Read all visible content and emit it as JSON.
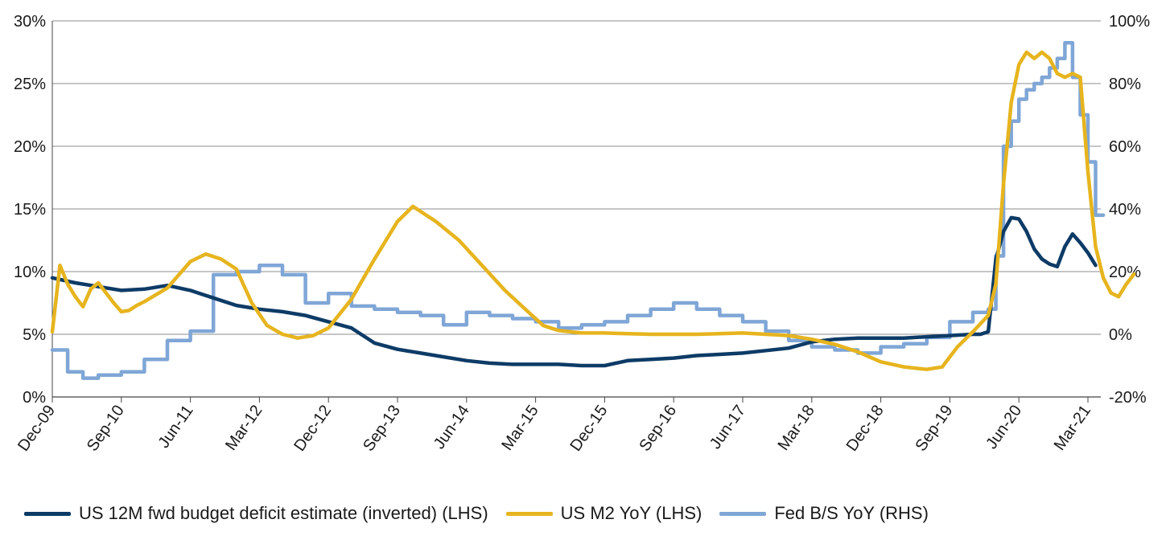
{
  "chart_data": {
    "type": "line",
    "title": "",
    "x_tick_labels": [
      "Dec-09",
      "Sep-10",
      "Jun-11",
      "Mar-12",
      "Dec-12",
      "Sep-13",
      "Jun-14",
      "Mar-15",
      "Dec-15",
      "Sep-16",
      "Jun-17",
      "Mar-18",
      "Dec-18",
      "Sep-19",
      "Jun-20",
      "Mar-21"
    ],
    "x_range": [
      "2009-12",
      "2021-03"
    ],
    "y_left": {
      "ticks": [
        "0%",
        "5%",
        "10%",
        "15%",
        "20%",
        "25%",
        "30%"
      ],
      "range": [
        0,
        30
      ]
    },
    "y_right": {
      "ticks": [
        "-20%",
        "0%",
        "20%",
        "40%",
        "60%",
        "80%",
        "100%"
      ],
      "range": [
        -20,
        100
      ]
    },
    "grid": "horizontal",
    "legend_position": "bottom",
    "series": [
      {
        "name": "US 12M fwd budget deficit estimate (inverted) (LHS)",
        "axis": "left",
        "color": "#0d3b66",
        "points": [
          [
            "2009-12",
            9.5
          ],
          [
            "2010-03",
            9.1
          ],
          [
            "2010-06",
            8.8
          ],
          [
            "2010-09",
            8.5
          ],
          [
            "2010-12",
            8.6
          ],
          [
            "2011-03",
            8.9
          ],
          [
            "2011-06",
            8.5
          ],
          [
            "2011-09",
            7.9
          ],
          [
            "2011-12",
            7.3
          ],
          [
            "2012-03",
            7.0
          ],
          [
            "2012-06",
            6.8
          ],
          [
            "2012-09",
            6.5
          ],
          [
            "2012-12",
            6.0
          ],
          [
            "2013-03",
            5.5
          ],
          [
            "2013-06",
            4.3
          ],
          [
            "2013-09",
            3.8
          ],
          [
            "2013-12",
            3.5
          ],
          [
            "2014-03",
            3.2
          ],
          [
            "2014-06",
            2.9
          ],
          [
            "2014-09",
            2.7
          ],
          [
            "2014-12",
            2.6
          ],
          [
            "2015-03",
            2.6
          ],
          [
            "2015-06",
            2.6
          ],
          [
            "2015-09",
            2.5
          ],
          [
            "2015-12",
            2.5
          ],
          [
            "2016-03",
            2.9
          ],
          [
            "2016-06",
            3.0
          ],
          [
            "2016-09",
            3.1
          ],
          [
            "2016-12",
            3.3
          ],
          [
            "2017-03",
            3.4
          ],
          [
            "2017-06",
            3.5
          ],
          [
            "2017-09",
            3.7
          ],
          [
            "2017-12",
            3.9
          ],
          [
            "2018-03",
            4.4
          ],
          [
            "2018-06",
            4.6
          ],
          [
            "2018-09",
            4.7
          ],
          [
            "2018-12",
            4.7
          ],
          [
            "2019-03",
            4.7
          ],
          [
            "2019-06",
            4.8
          ],
          [
            "2019-09",
            4.9
          ],
          [
            "2019-12",
            5.0
          ],
          [
            "2020-01",
            5.0
          ],
          [
            "2020-02",
            5.2
          ],
          [
            "2020-03",
            11.0
          ],
          [
            "2020-04",
            13.2
          ],
          [
            "2020-05",
            14.3
          ],
          [
            "2020-06",
            14.2
          ],
          [
            "2020-07",
            13.2
          ],
          [
            "2020-08",
            11.8
          ],
          [
            "2020-09",
            11.0
          ],
          [
            "2020-10",
            10.6
          ],
          [
            "2020-11",
            10.4
          ],
          [
            "2020-12",
            12.0
          ],
          [
            "2021-01",
            13.0
          ],
          [
            "2021-02",
            12.3
          ],
          [
            "2021-03",
            11.5
          ],
          [
            "2021-04",
            10.5
          ]
        ]
      },
      {
        "name": "US M2 YoY (LHS)",
        "axis": "left",
        "color": "#e6b41e",
        "points": [
          [
            "2009-12",
            5.2
          ],
          [
            "2010-01",
            10.5
          ],
          [
            "2010-02",
            9.0
          ],
          [
            "2010-03",
            8.0
          ],
          [
            "2010-04",
            7.2
          ],
          [
            "2010-05",
            8.6
          ],
          [
            "2010-06",
            9.1
          ],
          [
            "2010-07",
            8.3
          ],
          [
            "2010-08",
            7.5
          ],
          [
            "2010-09",
            6.8
          ],
          [
            "2010-10",
            6.9
          ],
          [
            "2010-11",
            7.3
          ],
          [
            "2010-12",
            7.6
          ],
          [
            "2011-03",
            8.7
          ],
          [
            "2011-06",
            10.8
          ],
          [
            "2011-08",
            11.4
          ],
          [
            "2011-10",
            11.0
          ],
          [
            "2011-12",
            10.2
          ],
          [
            "2012-02",
            7.5
          ],
          [
            "2012-04",
            5.7
          ],
          [
            "2012-06",
            5.0
          ],
          [
            "2012-08",
            4.7
          ],
          [
            "2012-10",
            4.9
          ],
          [
            "2012-12",
            5.5
          ],
          [
            "2013-03",
            7.8
          ],
          [
            "2013-06",
            11.0
          ],
          [
            "2013-09",
            14.0
          ],
          [
            "2013-11",
            15.2
          ],
          [
            "2014-02",
            14.0
          ],
          [
            "2014-05",
            12.5
          ],
          [
            "2014-08",
            10.5
          ],
          [
            "2014-11",
            8.5
          ],
          [
            "2015-02",
            6.8
          ],
          [
            "2015-04",
            5.7
          ],
          [
            "2015-06",
            5.3
          ],
          [
            "2015-09",
            5.1
          ],
          [
            "2015-12",
            5.1
          ],
          [
            "2016-06",
            5.0
          ],
          [
            "2016-12",
            5.0
          ],
          [
            "2017-06",
            5.1
          ],
          [
            "2017-12",
            4.9
          ],
          [
            "2018-03",
            4.6
          ],
          [
            "2018-06",
            4.2
          ],
          [
            "2018-09",
            3.6
          ],
          [
            "2018-12",
            2.8
          ],
          [
            "2019-03",
            2.4
          ],
          [
            "2019-06",
            2.2
          ],
          [
            "2019-08",
            2.4
          ],
          [
            "2019-10",
            4.0
          ],
          [
            "2019-12",
            5.2
          ],
          [
            "2020-02",
            6.5
          ],
          [
            "2020-03",
            9.0
          ],
          [
            "2020-04",
            17.0
          ],
          [
            "2020-05",
            23.5
          ],
          [
            "2020-06",
            26.5
          ],
          [
            "2020-07",
            27.5
          ],
          [
            "2020-08",
            27.0
          ],
          [
            "2020-09",
            27.5
          ],
          [
            "2020-10",
            27.0
          ],
          [
            "2020-11",
            25.8
          ],
          [
            "2020-12",
            25.5
          ],
          [
            "2021-01",
            25.8
          ],
          [
            "2021-02",
            25.5
          ],
          [
            "2021-03",
            18.0
          ],
          [
            "2021-04",
            12.0
          ],
          [
            "2021-05",
            9.5
          ],
          [
            "2021-06",
            8.3
          ],
          [
            "2021-07",
            8.0
          ],
          [
            "2021-08",
            9.0
          ],
          [
            "2021-09",
            9.8
          ]
        ]
      },
      {
        "name": "Fed B/S YoY (RHS)",
        "axis": "right",
        "color": "#7fa6d6",
        "points": [
          [
            "2009-12",
            -5
          ],
          [
            "2010-02",
            -12
          ],
          [
            "2010-04",
            -14
          ],
          [
            "2010-06",
            -13
          ],
          [
            "2010-09",
            -12
          ],
          [
            "2010-12",
            -8
          ],
          [
            "2011-03",
            -2
          ],
          [
            "2011-06",
            1
          ],
          [
            "2011-09",
            19
          ],
          [
            "2011-12",
            20
          ],
          [
            "2012-03",
            22
          ],
          [
            "2012-06",
            19
          ],
          [
            "2012-09",
            10
          ],
          [
            "2012-12",
            13
          ],
          [
            "2013-03",
            9
          ],
          [
            "2013-06",
            8
          ],
          [
            "2013-09",
            7
          ],
          [
            "2013-12",
            6
          ],
          [
            "2014-03",
            3
          ],
          [
            "2014-06",
            7
          ],
          [
            "2014-09",
            6
          ],
          [
            "2014-12",
            5
          ],
          [
            "2015-03",
            4
          ],
          [
            "2015-06",
            2
          ],
          [
            "2015-09",
            3
          ],
          [
            "2015-12",
            4
          ],
          [
            "2016-03",
            6
          ],
          [
            "2016-06",
            8
          ],
          [
            "2016-09",
            10
          ],
          [
            "2016-12",
            8
          ],
          [
            "2017-03",
            6
          ],
          [
            "2017-06",
            4
          ],
          [
            "2017-09",
            1
          ],
          [
            "2017-12",
            -2
          ],
          [
            "2018-03",
            -4
          ],
          [
            "2018-06",
            -5
          ],
          [
            "2018-09",
            -6
          ],
          [
            "2018-12",
            -4
          ],
          [
            "2019-03",
            -3
          ],
          [
            "2019-06",
            -1
          ],
          [
            "2019-09",
            4
          ],
          [
            "2019-12",
            7
          ],
          [
            "2020-02",
            8
          ],
          [
            "2020-03",
            25
          ],
          [
            "2020-04",
            60
          ],
          [
            "2020-05",
            68
          ],
          [
            "2020-06",
            75
          ],
          [
            "2020-07",
            78
          ],
          [
            "2020-08",
            80
          ],
          [
            "2020-09",
            82
          ],
          [
            "2020-10",
            85
          ],
          [
            "2020-11",
            88
          ],
          [
            "2020-12",
            93
          ],
          [
            "2021-01",
            82
          ],
          [
            "2021-02",
            70
          ],
          [
            "2021-03",
            55
          ],
          [
            "2021-04",
            38
          ],
          [
            "2021-05",
            38
          ]
        ]
      }
    ]
  }
}
